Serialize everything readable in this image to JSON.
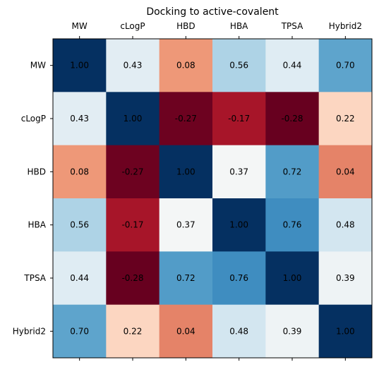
{
  "chart_data": {
    "type": "heatmap",
    "title": "Docking to active-covalent",
    "xlabel": "",
    "ylabel": "",
    "x_categories": [
      "MW",
      "cLogP",
      "HBD",
      "HBA",
      "TPSA",
      "Hybrid2"
    ],
    "y_categories": [
      "MW",
      "cLogP",
      "HBD",
      "HBA",
      "TPSA",
      "Hybrid2"
    ],
    "x_tick_position": "top",
    "values": [
      [
        1.0,
        0.43,
        0.08,
        0.56,
        0.44,
        0.7
      ],
      [
        0.43,
        1.0,
        -0.27,
        -0.17,
        -0.28,
        0.22
      ],
      [
        0.08,
        -0.27,
        1.0,
        0.37,
        0.72,
        0.04
      ],
      [
        0.56,
        -0.17,
        0.37,
        1.0,
        0.76,
        0.48
      ],
      [
        0.44,
        -0.28,
        0.72,
        0.76,
        1.0,
        0.39
      ],
      [
        0.7,
        0.22,
        0.04,
        0.48,
        0.39,
        1.0
      ]
    ],
    "value_labels": [
      [
        "1.00",
        "0.43",
        "0.08",
        "0.56",
        "0.44",
        "0.70"
      ],
      [
        "0.43",
        "1.00",
        "-0.27",
        "-0.17",
        "-0.28",
        "0.22"
      ],
      [
        "0.08",
        "-0.27",
        "1.00",
        "0.37",
        "0.72",
        "0.04"
      ],
      [
        "0.56",
        "-0.17",
        "0.37",
        "1.00",
        "0.76",
        "0.48"
      ],
      [
        "0.44",
        "-0.28",
        "0.72",
        "0.76",
        "1.00",
        "0.39"
      ],
      [
        "0.70",
        "0.22",
        "0.04",
        "0.48",
        "0.39",
        "1.00"
      ]
    ],
    "colormap": "RdBu",
    "color_range": [
      -0.28,
      1.0
    ],
    "grid": false
  }
}
